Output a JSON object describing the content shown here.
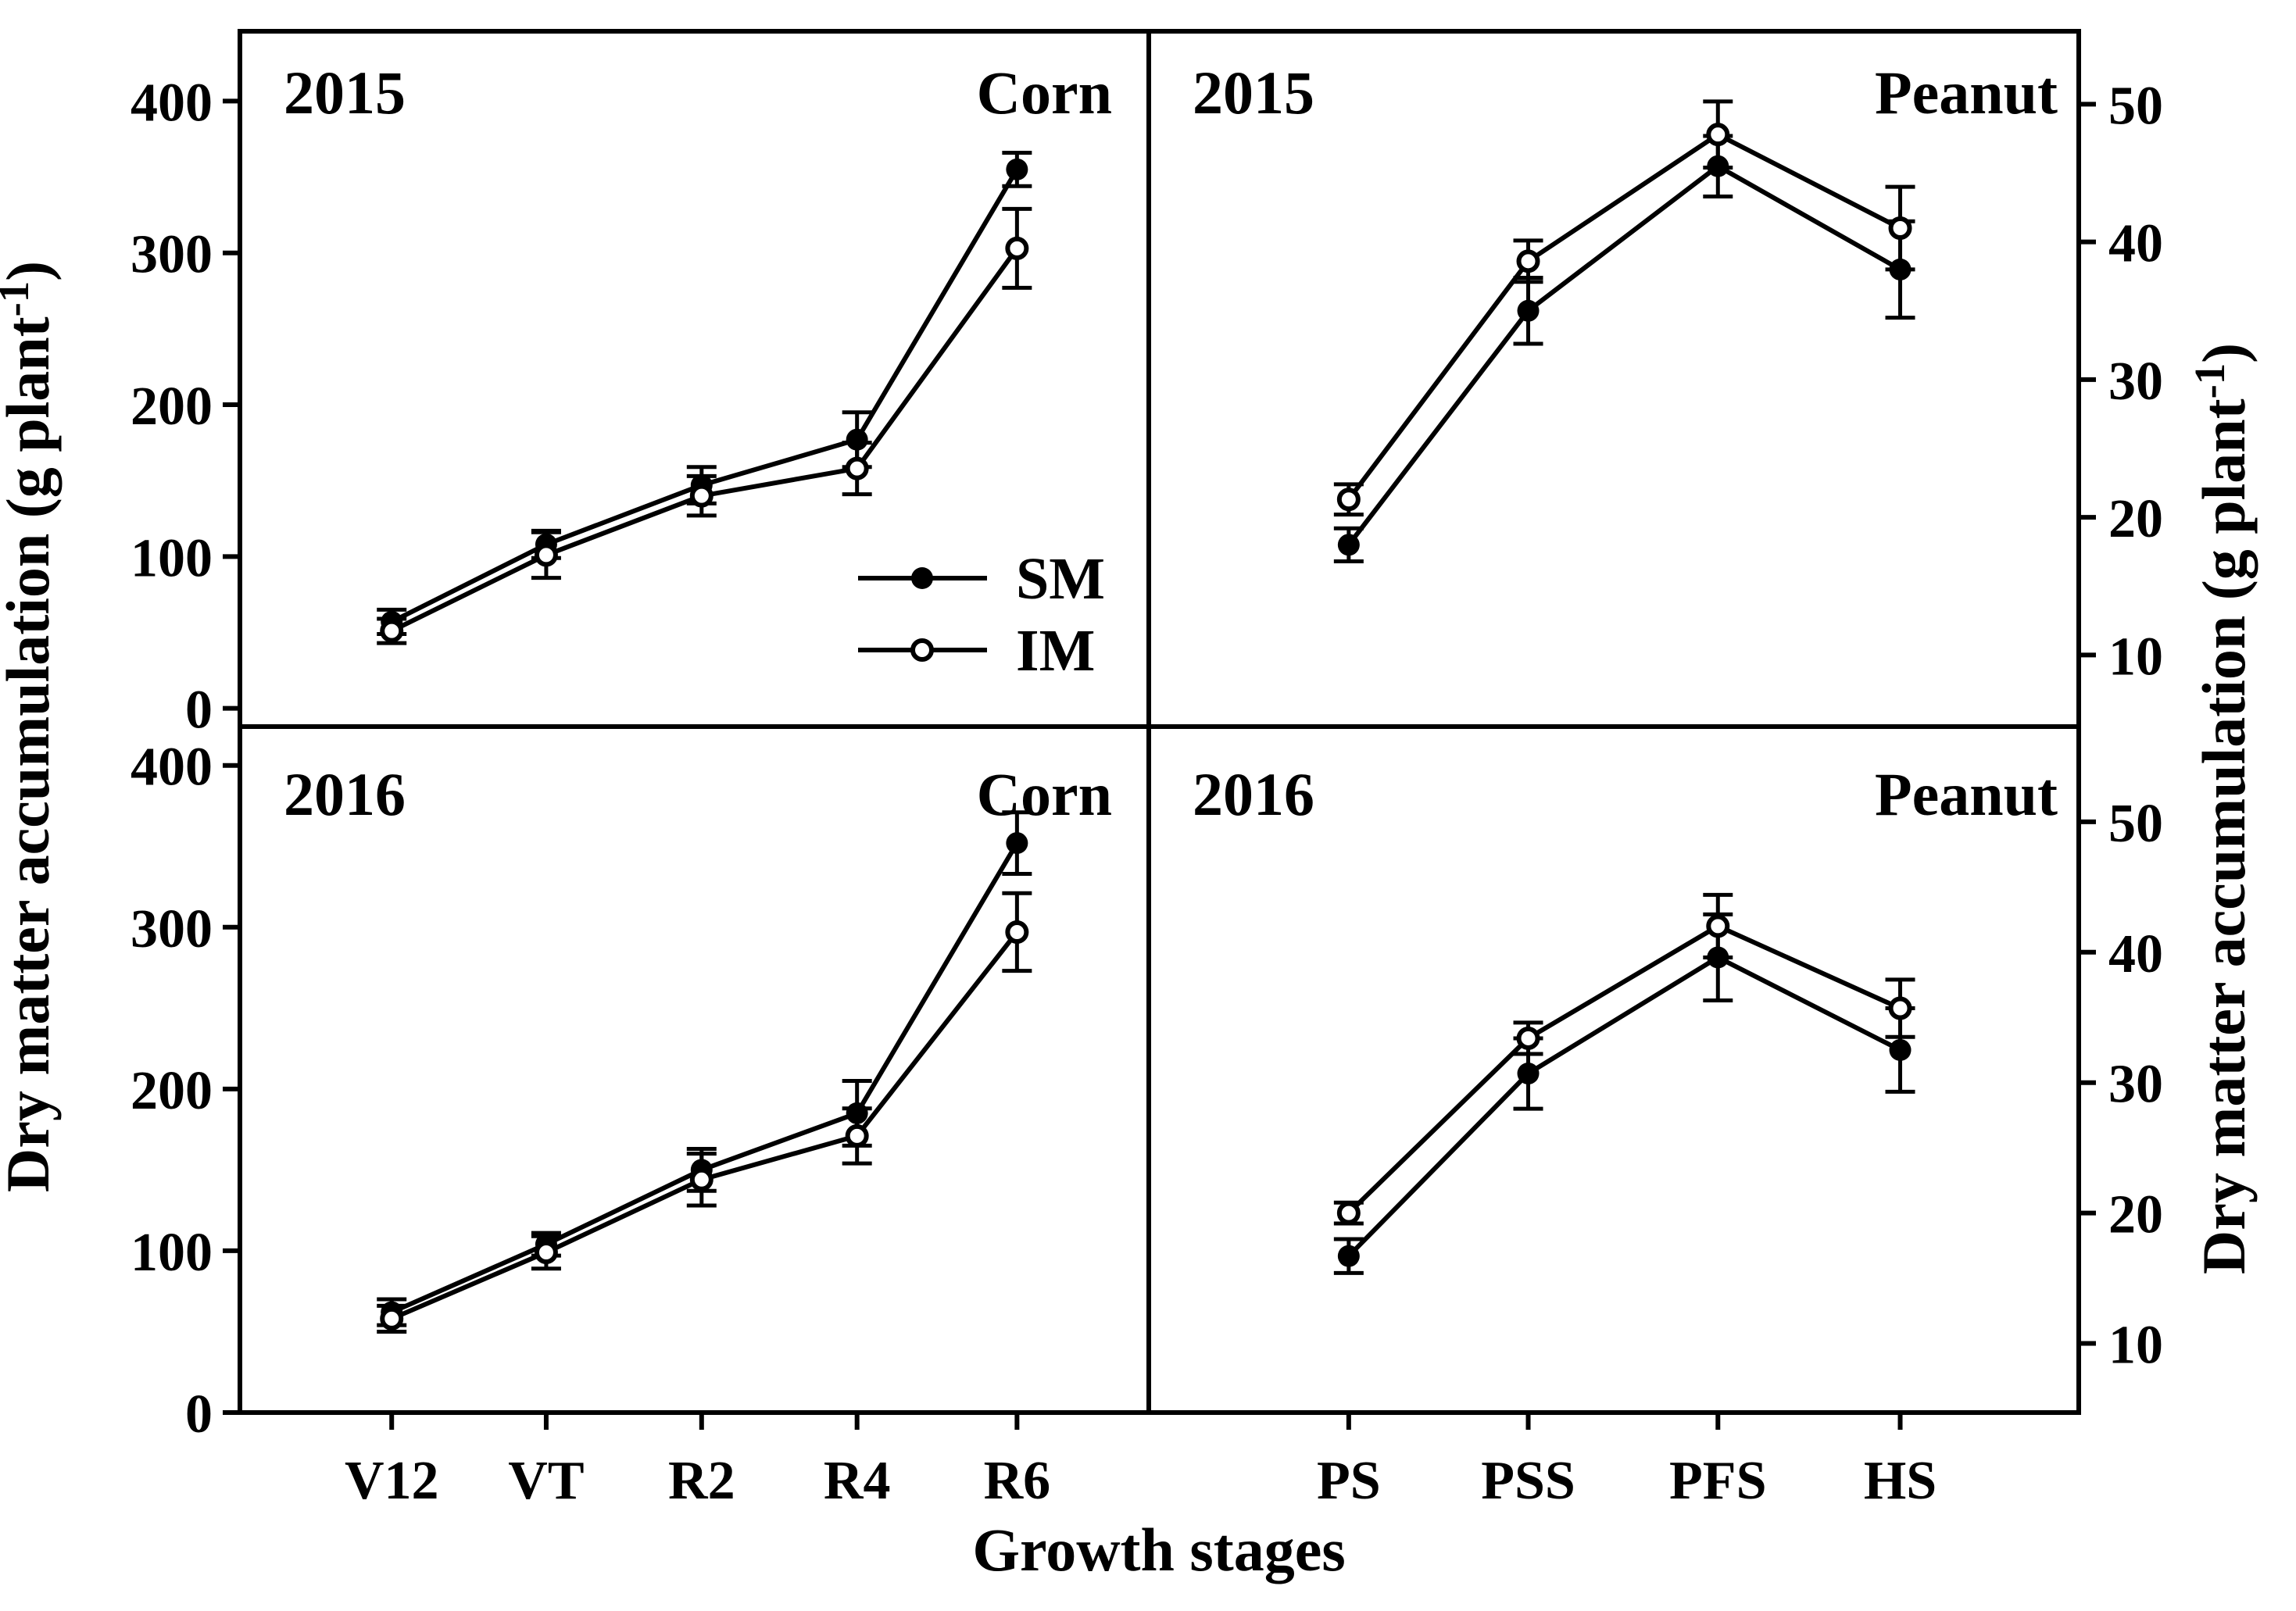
{
  "figure": {
    "background_color": "#ffffff",
    "foreground_color": "#000000",
    "xlabel": "Growth stages",
    "ylabel_left": {
      "main": "Dry matter accumulation (g plant",
      "sup": "-1",
      "close": ")"
    },
    "ylabel_right": {
      "main": "Dry matter accumulation (g plant",
      "sup": "-1",
      "close": ")"
    },
    "legend": {
      "items": [
        {
          "label": "SM",
          "marker": "filled-circle"
        },
        {
          "label": "IM",
          "marker": "open-circle"
        }
      ]
    }
  },
  "chart_data": {
    "type": "line",
    "title": "",
    "xlabel": "Growth stages",
    "ylabel_left": "Dry matter accumulation (g plant⁻¹)",
    "ylabel_right": "Dry matter accumulation (g plant⁻¹)",
    "legend_position": "inside top-left panel, lower-right area",
    "grid": false,
    "error_bars": true,
    "panels": [
      {
        "id": "corn-2015",
        "year_label": "2015",
        "crop_label": "Corn",
        "axis_side": "left",
        "categories": [
          "V12",
          "VT",
          "R2",
          "R4",
          "R6"
        ],
        "ylim": [
          -12,
          446
        ],
        "yticks": [
          0,
          100,
          200,
          300,
          400
        ],
        "series": [
          {
            "name": "SM",
            "marker": "filled",
            "values": [
              57,
              108,
              147,
              177,
              355
            ],
            "errors": [
              8,
              9,
              12,
              18,
              11
            ]
          },
          {
            "name": "IM",
            "marker": "open",
            "values": [
              51,
              101,
              140,
              158,
              303
            ],
            "errors": [
              8,
              15,
              13,
              17,
              26
            ]
          }
        ]
      },
      {
        "id": "peanut-2015",
        "year_label": "2015",
        "crop_label": "Peanut",
        "axis_side": "right",
        "categories": [
          "PS",
          "PSS",
          "PFS",
          "HS"
        ],
        "ylim": [
          4.8,
          55.3
        ],
        "yticks": [
          10,
          20,
          30,
          40,
          50
        ],
        "series": [
          {
            "name": "SM",
            "marker": "filled",
            "values": [
              18,
              35,
              45.5,
              38
            ],
            "errors": [
              1.2,
              2.4,
              2.2,
              3.5
            ]
          },
          {
            "name": "IM",
            "marker": "open",
            "values": [
              21.3,
              38.6,
              47.8,
              41
            ],
            "errors": [
              1.1,
              1.5,
              2.4,
              3
            ]
          }
        ]
      },
      {
        "id": "corn-2016",
        "year_label": "2016",
        "crop_label": "Corn",
        "axis_side": "left",
        "categories": [
          "V12",
          "VT",
          "R2",
          "R4",
          "R6"
        ],
        "ylim": [
          0,
          424
        ],
        "yticks": [
          0,
          100,
          200,
          300,
          400
        ],
        "series": [
          {
            "name": "SM",
            "marker": "filled",
            "values": [
              62,
              104,
              150,
              185,
              352
            ],
            "errors": [
              8,
              7,
              13,
              20,
              19
            ]
          },
          {
            "name": "IM",
            "marker": "open",
            "values": [
              58,
              99,
              144,
              171,
              297
            ],
            "errors": [
              8,
              10,
              16,
              17,
              24
            ]
          }
        ]
      },
      {
        "id": "peanut-2016",
        "year_label": "2016",
        "crop_label": "Peanut",
        "axis_side": "right",
        "categories": [
          "PS",
          "PSS",
          "PFS",
          "HS"
        ],
        "ylim": [
          4.7,
          57.3
        ],
        "yticks": [
          10,
          20,
          30,
          40,
          50
        ],
        "series": [
          {
            "name": "SM",
            "marker": "filled",
            "values": [
              16.7,
              30.7,
              39.6,
              32.5
            ],
            "errors": [
              1.3,
              2.7,
              3.3,
              3.2
            ]
          },
          {
            "name": "IM",
            "marker": "open",
            "values": [
              20,
              33.4,
              42,
              35.7
            ],
            "errors": [
              0.8,
              1.2,
              2.4,
              2.2
            ]
          }
        ]
      }
    ]
  }
}
